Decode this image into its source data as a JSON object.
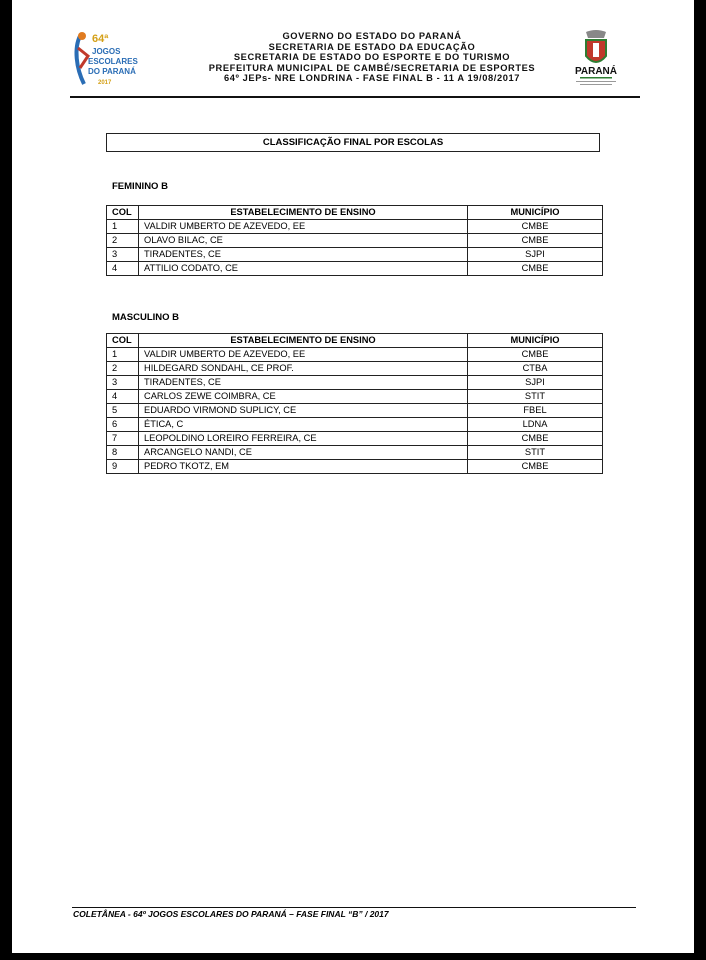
{
  "header": {
    "lines": [
      "GOVERNO DO ESTADO DO PARANÁ",
      "SECRETARIA DE ESTADO DA EDUCAÇÃO",
      "SECRETARIA DE ESTADO DO ESPORTE E DO TURISMO",
      "PREFEITURA MUNICIPAL DE CAMBÉ/SECRETARIA DE ESPORTES",
      "64º JEPs- NRE LONDRINA - FASE FINAL B - 11 A 19/08/2017"
    ],
    "logo_left": {
      "text": [
        "64ª",
        "JOGOS",
        "ESCOLARES",
        "DO PARANÁ",
        "2017"
      ]
    },
    "logo_right": {
      "text": "PARANÁ"
    }
  },
  "title": "CLASSIFICAÇÃO FINAL POR ESCOLAS",
  "columns": [
    "COL",
    "ESTABELECIMENTO DE ENSINO",
    "MUNICÍPIO"
  ],
  "feminino": {
    "label": "FEMININO B",
    "rows": [
      [
        "1",
        "VALDIR UMBERTO DE AZEVEDO, EE",
        "CMBE"
      ],
      [
        "2",
        "OLAVO BILAC, CE",
        "CMBE"
      ],
      [
        "3",
        "TIRADENTES, CE",
        "SJPI"
      ],
      [
        "4",
        "ATTILIO CODATO, CE",
        "CMBE"
      ]
    ]
  },
  "masculino": {
    "label": "MASCULINO B",
    "rows": [
      [
        "1",
        "VALDIR UMBERTO DE AZEVEDO, EE",
        "CMBE"
      ],
      [
        "2",
        "HILDEGARD SONDAHL, CE PROF.",
        "CTBA"
      ],
      [
        "3",
        " TIRADENTES, CE",
        "SJPI"
      ],
      [
        "4",
        "CARLOS ZEWE COIMBRA, CE",
        "STIT"
      ],
      [
        "5",
        "EDUARDO VIRMOND SUPLICY, CE",
        "FBEL"
      ],
      [
        "6",
        "ÉTICA, C",
        "LDNA"
      ],
      [
        "7",
        "LEOPOLDINO LOREIRO FERREIRA, CE",
        "CMBE"
      ],
      [
        "8",
        "ARCANGELO  NANDI, CE",
        "STIT"
      ],
      [
        "9",
        "PEDRO TKOTZ, EM",
        "CMBE"
      ]
    ]
  },
  "footer": "COLETÂNEA - 64º JOGOS ESCOLARES DO PARANÁ – FASE FINAL “B” / 2017"
}
